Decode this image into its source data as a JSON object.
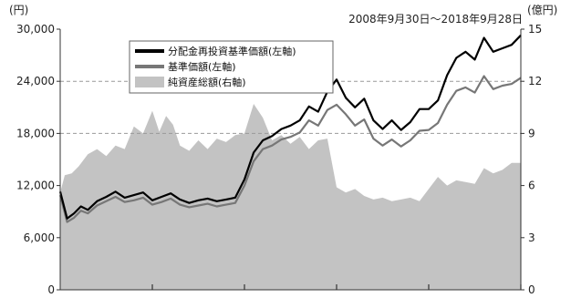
{
  "chart_data": {
    "type": "line",
    "period_label": "2008年9月30日～2018年9月28日",
    "left_axis": {
      "unit": "(円)",
      "range": [
        0,
        30000
      ],
      "ticks": [
        0,
        6000,
        12000,
        18000,
        24000,
        30000
      ],
      "tick_labels": [
        "0",
        "6,000",
        "12,000",
        "18,000",
        "24,000",
        "30,000"
      ]
    },
    "right_axis": {
      "unit": "(億円)",
      "range": [
        0,
        15
      ],
      "ticks": [
        0,
        3,
        6,
        9,
        12,
        15
      ],
      "tick_labels": [
        "0",
        "3",
        "6",
        "9",
        "12",
        "15"
      ]
    },
    "x_axis": {
      "range": [
        0,
        10
      ],
      "tick_positions": [
        2,
        4,
        6,
        8,
        10
      ]
    },
    "grid": {
      "horizontal_dashed": [
        18000,
        24000
      ],
      "vertical": false
    },
    "legend_position": "top-center",
    "colors": {
      "reinvested_nav": "#000000",
      "nav": "#777777",
      "net_assets": "#c3c3c3",
      "grid": "#999999",
      "axis": "#333333"
    },
    "series": [
      {
        "name": "分配金再投資基準価額(左軸)",
        "axis": "left",
        "style": "line",
        "x": [
          0,
          0.15,
          0.3,
          0.45,
          0.6,
          0.8,
          1.0,
          1.2,
          1.4,
          1.6,
          1.8,
          2.0,
          2.2,
          2.4,
          2.6,
          2.8,
          3.0,
          3.2,
          3.4,
          3.6,
          3.8,
          4.0,
          4.2,
          4.4,
          4.6,
          4.8,
          5.0,
          5.2,
          5.4,
          5.6,
          5.8,
          6.0,
          6.2,
          6.4,
          6.6,
          6.8,
          7.0,
          7.2,
          7.4,
          7.6,
          7.8,
          8.0,
          8.2,
          8.4,
          8.6,
          8.8,
          9.0,
          9.2,
          9.4,
          9.6,
          9.8,
          10.0
        ],
        "values": [
          11300,
          8200,
          8800,
          9600,
          9200,
          10200,
          10700,
          11300,
          10600,
          10900,
          11200,
          10300,
          10700,
          11100,
          10400,
          10000,
          10300,
          10500,
          10200,
          10400,
          10600,
          12700,
          15800,
          17200,
          17700,
          18500,
          18900,
          19500,
          21100,
          20500,
          22800,
          24200,
          22100,
          21000,
          22000,
          19500,
          18500,
          19500,
          18400,
          19300,
          20800,
          20800,
          21800,
          24700,
          26700,
          27400,
          26500,
          29000,
          27400,
          27800,
          28200,
          29300
        ]
      },
      {
        "name": "基準価額(左軸)",
        "axis": "left",
        "style": "line",
        "x": [
          0,
          0.15,
          0.3,
          0.45,
          0.6,
          0.8,
          1.0,
          1.2,
          1.4,
          1.6,
          1.8,
          2.0,
          2.2,
          2.4,
          2.6,
          2.8,
          3.0,
          3.2,
          3.4,
          3.6,
          3.8,
          4.0,
          4.2,
          4.4,
          4.6,
          4.8,
          5.0,
          5.2,
          5.4,
          5.6,
          5.8,
          6.0,
          6.2,
          6.4,
          6.6,
          6.8,
          7.0,
          7.2,
          7.4,
          7.6,
          7.8,
          8.0,
          8.2,
          8.4,
          8.6,
          8.8,
          9.0,
          9.2,
          9.4,
          9.6,
          9.8,
          10.0
        ],
        "values": [
          10900,
          7800,
          8300,
          9100,
          8800,
          9700,
          10200,
          10700,
          10100,
          10300,
          10600,
          9800,
          10100,
          10500,
          9800,
          9500,
          9700,
          9900,
          9600,
          9800,
          10000,
          12000,
          14800,
          16200,
          16600,
          17300,
          17600,
          18100,
          19500,
          18900,
          20700,
          21300,
          20200,
          18900,
          19600,
          17400,
          16600,
          17300,
          16500,
          17200,
          18300,
          18400,
          19200,
          21300,
          22900,
          23300,
          22700,
          24600,
          23100,
          23500,
          23700,
          24400
        ]
      },
      {
        "name": "純資産総額(右軸)",
        "axis": "right",
        "style": "area",
        "x": [
          0,
          0.1,
          0.25,
          0.4,
          0.6,
          0.8,
          1.0,
          1.2,
          1.4,
          1.6,
          1.8,
          2.0,
          2.15,
          2.3,
          2.45,
          2.6,
          2.8,
          3.0,
          3.2,
          3.4,
          3.6,
          3.8,
          4.0,
          4.2,
          4.4,
          4.6,
          4.8,
          5.0,
          5.2,
          5.4,
          5.6,
          5.8,
          6.0,
          6.2,
          6.4,
          6.6,
          6.8,
          7.0,
          7.2,
          7.4,
          7.6,
          7.8,
          8.0,
          8.2,
          8.4,
          8.6,
          8.8,
          9.0,
          9.2,
          9.4,
          9.6,
          9.8,
          10.0
        ],
        "values": [
          5.6,
          6.6,
          6.7,
          7.1,
          7.8,
          8.1,
          7.7,
          8.3,
          8.1,
          9.4,
          9.0,
          10.3,
          9.1,
          10.0,
          9.5,
          8.3,
          8.0,
          8.6,
          8.1,
          8.7,
          8.5,
          8.9,
          9.0,
          10.7,
          9.9,
          8.6,
          8.9,
          8.4,
          8.8,
          8.1,
          8.6,
          8.7,
          5.9,
          5.6,
          5.8,
          5.4,
          5.2,
          5.3,
          5.1,
          5.2,
          5.3,
          5.1,
          5.8,
          6.5,
          6.0,
          6.3,
          6.2,
          6.1,
          7.0,
          6.7,
          6.9,
          7.3,
          7.3
        ]
      }
    ]
  }
}
